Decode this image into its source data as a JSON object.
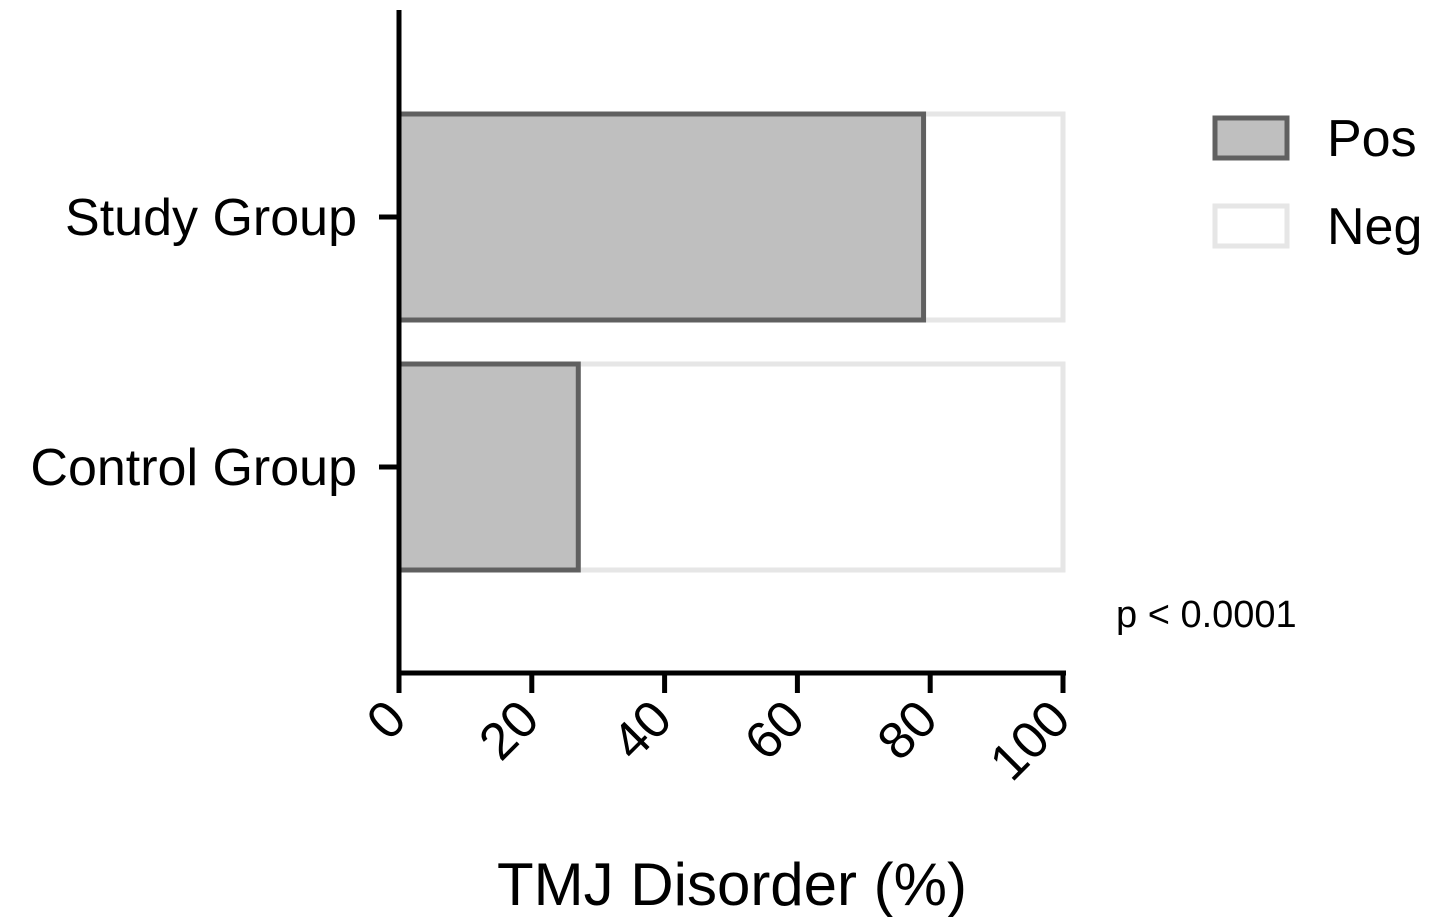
{
  "chart_data": {
    "type": "bar",
    "orientation": "horizontal",
    "stacked": true,
    "categories": [
      "Study Group",
      "Control Group"
    ],
    "series": [
      {
        "name": "Pos",
        "values": [
          79,
          27
        ],
        "fill": "#bfbfbf",
        "stroke": "#606060"
      },
      {
        "name": "Neg",
        "values": [
          21,
          73
        ],
        "fill": "#ffffff",
        "stroke": "#e6e6e6"
      }
    ],
    "xlabel": "TMJ Disorder (%)",
    "ylabel": "",
    "xlim": [
      0,
      100
    ],
    "xticks": [
      "0",
      "20",
      "40",
      "60",
      "80",
      "100"
    ],
    "legend": "top-right",
    "grid": false,
    "annotation": "p < 0.0001"
  }
}
